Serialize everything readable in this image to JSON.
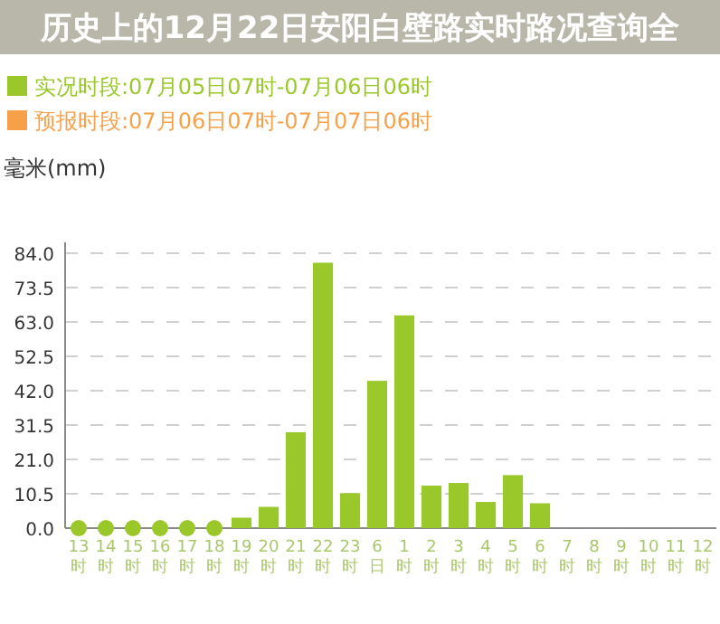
{
  "chart_data": {
    "type": "bar",
    "title": "历史上的12月22日安阳白壁路实时路况查询全",
    "ylabel": "毫米(mm)",
    "categories": [
      "13时",
      "14时",
      "15时",
      "16时",
      "17时",
      "18时",
      "19时",
      "20时",
      "21时",
      "22时",
      "23时",
      "6日",
      "1时",
      "2时",
      "3时",
      "4时",
      "5时",
      "6时",
      "7时",
      "8时",
      "9时",
      "10时",
      "11时",
      "12时"
    ],
    "series": [
      {
        "name": "实况时段:07月05日07时-07月06日06时",
        "color": "#9ac82a",
        "values": [
          0,
          0,
          0,
          0,
          0,
          0,
          3.2,
          6.5,
          29.3,
          81.1,
          10.7,
          45,
          65,
          13.0,
          13.8,
          8.0,
          16.2,
          7.6,
          null,
          null,
          null,
          null,
          null,
          null
        ]
      },
      {
        "name": "预报时段:07月06日07时-07月07日06时",
        "color": "#f7a04a",
        "values": [
          null,
          null,
          null,
          null,
          null,
          null,
          null,
          null,
          null,
          null,
          null,
          null,
          null,
          null,
          null,
          null,
          null,
          null,
          null,
          null,
          null,
          null,
          null,
          null
        ]
      },
      {
        "type": "scatter",
        "color": "#9ac82a",
        "marker": "circle",
        "x": [
          "13时",
          "14时",
          "15时",
          "16时",
          "17时",
          "18时"
        ],
        "values": [
          0,
          0,
          0,
          0,
          0,
          0
        ]
      }
    ],
    "ylim": [
      0,
      84
    ],
    "yticks": [
      {
        "value": 0,
        "label": "0.0"
      },
      {
        "value": 10.5,
        "label": "10.5"
      },
      {
        "value": 21,
        "label": "21.0"
      },
      {
        "value": 31.5,
        "label": "31.5"
      },
      {
        "value": 42,
        "label": "42.0"
      },
      {
        "value": 52.5,
        "label": "52.5"
      },
      {
        "value": 63,
        "label": "63.0"
      },
      {
        "value": 73.5,
        "label": "73.5"
      },
      {
        "value": 84,
        "label": "84.0"
      }
    ],
    "grid": "y",
    "legend": "top left"
  }
}
